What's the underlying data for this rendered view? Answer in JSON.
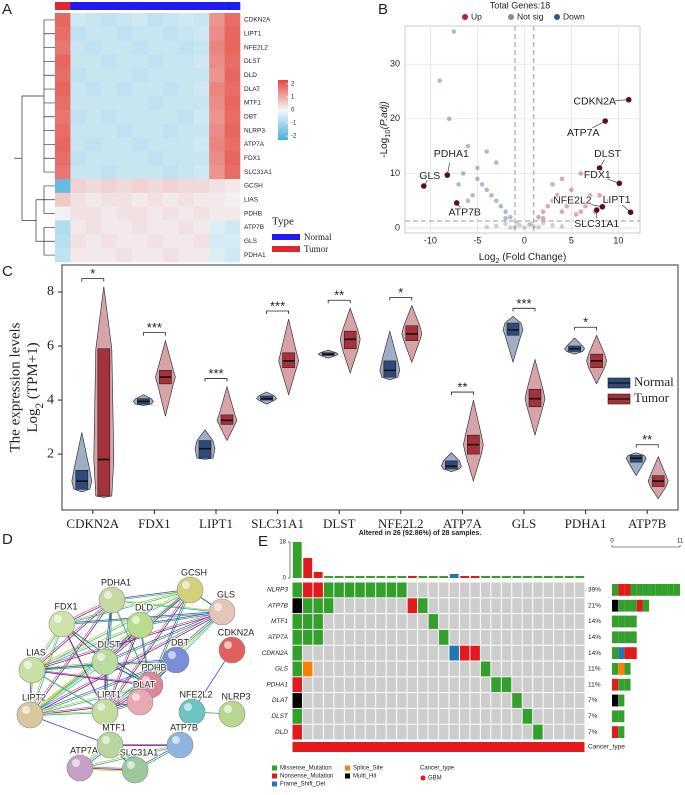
{
  "chart_data": [
    {
      "type": "heatmap",
      "panel": "A",
      "genes": [
        "CDKN2A",
        "LIPT1",
        "NFE2L2",
        "DLST",
        "DLD",
        "DLAT",
        "MTF1",
        "DBT",
        "NLRP3",
        "ATP7A",
        "FDX1",
        "SLC31A1",
        "GCSH",
        "LIAS",
        "PDHB",
        "ATP7B",
        "GLS",
        "PDHA1"
      ],
      "columns": [
        "Tumor",
        "Normal",
        "Normal",
        "Normal",
        "Normal",
        "Normal",
        "Normal",
        "Normal",
        "Normal",
        "Normal",
        "Normal",
        "Normal"
      ],
      "values": [
        [
          1.9,
          -0.5,
          -0.6,
          -0.7,
          -0.6,
          -0.5,
          -0.7,
          -0.6,
          -0.5,
          -0.6,
          1.3,
          1.8
        ],
        [
          1.8,
          -0.7,
          -0.6,
          -0.6,
          -0.7,
          -0.6,
          -0.6,
          -0.7,
          -0.6,
          -0.5,
          1.4,
          1.9
        ],
        [
          1.7,
          -0.6,
          -0.7,
          -0.6,
          -0.6,
          -0.7,
          -0.6,
          -0.6,
          -0.7,
          -0.6,
          1.5,
          1.9
        ],
        [
          1.9,
          -0.6,
          -0.6,
          -0.7,
          -0.6,
          -0.6,
          -0.7,
          -0.6,
          -0.6,
          -0.5,
          1.4,
          1.8
        ],
        [
          1.8,
          -0.7,
          -0.6,
          -0.6,
          -0.6,
          -0.7,
          -0.6,
          -0.6,
          -0.6,
          -0.6,
          1.3,
          1.9
        ],
        [
          1.9,
          -0.6,
          -0.7,
          -0.6,
          -0.7,
          -0.6,
          -0.6,
          -0.7,
          -0.6,
          -0.5,
          1.5,
          1.8
        ],
        [
          1.8,
          -0.6,
          -0.6,
          -0.6,
          -0.6,
          -0.6,
          -0.7,
          -0.6,
          -0.6,
          -0.6,
          1.4,
          1.9
        ],
        [
          1.7,
          -0.7,
          -0.6,
          -0.7,
          -0.6,
          -0.6,
          -0.6,
          -0.6,
          -0.7,
          -0.5,
          1.3,
          1.8
        ],
        [
          1.8,
          -0.6,
          -0.6,
          -0.6,
          -0.7,
          -0.6,
          -0.6,
          -0.7,
          -0.6,
          -0.6,
          1.4,
          1.9
        ],
        [
          1.9,
          -0.6,
          -0.7,
          -0.6,
          -0.6,
          -0.7,
          -0.6,
          -0.6,
          -0.6,
          -0.5,
          1.5,
          1.8
        ],
        [
          1.8,
          -0.7,
          -0.6,
          -0.6,
          -0.6,
          -0.6,
          -0.7,
          -0.6,
          -0.6,
          -0.6,
          1.4,
          1.9
        ],
        [
          1.7,
          -0.6,
          -0.6,
          -0.7,
          -0.6,
          -0.6,
          -0.6,
          -0.7,
          -0.6,
          -0.5,
          1.3,
          1.8
        ],
        [
          -1.9,
          0.5,
          0.4,
          0.5,
          0.4,
          0.5,
          0.4,
          0.5,
          0.4,
          0.4,
          0.3,
          0.2
        ],
        [
          0.6,
          0.3,
          0.2,
          0.3,
          0.3,
          0.2,
          0.3,
          0.2,
          0.3,
          0.2,
          0.2,
          0.1
        ],
        [
          0.1,
          0.3,
          0.3,
          0.2,
          0.3,
          0.3,
          0.2,
          0.3,
          0.2,
          0.3,
          0.2,
          0.2
        ],
        [
          -0.9,
          0.2,
          0.3,
          0.2,
          0.2,
          0.3,
          0.2,
          0.2,
          0.3,
          0.2,
          -0.3,
          -0.5
        ],
        [
          -0.8,
          0.3,
          0.2,
          0.3,
          0.2,
          0.2,
          0.3,
          0.2,
          0.2,
          0.3,
          -0.4,
          -0.4
        ],
        [
          -0.7,
          0.2,
          0.2,
          0.2,
          0.3,
          0.2,
          0.2,
          0.3,
          0.2,
          0.2,
          -0.3,
          -0.5
        ]
      ],
      "clim": [
        -2.3,
        2.3
      ],
      "colorbar_ticks": [
        2,
        1,
        0,
        -1,
        -2
      ],
      "colors": {
        "low": "#4aaed9",
        "mid": "#f4f8fb",
        "high": "#e4473d"
      },
      "legend_title": "Type",
      "legend": [
        {
          "name": "Normal",
          "color": "#1c1cf2"
        },
        {
          "name": "Tumor",
          "color": "#e0262c"
        }
      ]
    },
    {
      "type": "scatter",
      "panel": "B",
      "title": "Total Genes:18",
      "xlabel": {
        "base": "Log",
        "sub": "2",
        "rest": " (Fold Change)"
      },
      "ylabel": {
        "base": "-Log",
        "sub": "10",
        "rest": "(P.adj)"
      },
      "xlim": [
        -12.7,
        12.3
      ],
      "ylim": [
        -0.9,
        37
      ],
      "xticks": [
        -10,
        -5,
        0,
        5,
        10
      ],
      "yticks": [
        0,
        10,
        20,
        30
      ],
      "thresholds": {
        "x": [
          -1,
          1
        ],
        "y": 1.3
      },
      "series": [
        {
          "name": "Up",
          "color": "#b3213a",
          "x": [
            1.5,
            2,
            2.5,
            3,
            3.5,
            4,
            4.5,
            5,
            5.5,
            6,
            6.5,
            7,
            3,
            4,
            5,
            2,
            6,
            8,
            9,
            7.5
          ],
          "y": [
            2,
            3,
            4,
            5,
            6,
            3,
            4,
            5,
            2.5,
            3,
            4,
            6,
            8,
            9,
            7,
            1.8,
            10,
            6,
            5,
            3
          ]
        },
        {
          "name": "Not sig",
          "color": "#8c8c8c",
          "x": [
            -1,
            -0.5,
            0,
            0.5,
            1,
            -2,
            2,
            -3,
            3,
            -4,
            4,
            -0.8,
            0.7,
            -1.5,
            1.5
          ],
          "y": [
            0.2,
            0.5,
            0.1,
            0.6,
            0.3,
            0.8,
            0.9,
            0.4,
            0.5,
            0.2,
            0.3,
            1.0,
            0.8,
            0.1,
            0.2
          ]
        },
        {
          "name": "Down",
          "color": "#2f5597",
          "x": [
            -1.5,
            -2,
            -2.5,
            -3,
            -3.5,
            -4,
            -4.5,
            -5,
            -5.5,
            -6,
            -6.5,
            -7,
            -3,
            -4,
            -5,
            -2,
            -6,
            -8,
            -9,
            -7.5
          ],
          "y": [
            2,
            3,
            4,
            5,
            6,
            7,
            8,
            9,
            6,
            5,
            10,
            8,
            12,
            14,
            11,
            1.8,
            15,
            20,
            27,
            36
          ]
        }
      ],
      "labels": [
        {
          "text": "CDKN2A",
          "x": 11.1,
          "y": 23.5
        },
        {
          "text": "ATP7A",
          "x": 8.6,
          "y": 19.6
        },
        {
          "text": "DLST",
          "x": 8.0,
          "y": 11
        },
        {
          "text": "FDX1",
          "x": 10.1,
          "y": 8.2
        },
        {
          "text": "LIPT1",
          "x": 11.3,
          "y": 2.9
        },
        {
          "text": "SLC31A1",
          "x": 7.7,
          "y": 3.3
        },
        {
          "text": "NFE2L2",
          "x": 8.3,
          "y": 3.9
        },
        {
          "text": "PDHA1",
          "x": -8.2,
          "y": 9.7
        },
        {
          "text": "GLS",
          "x": -10.7,
          "y": 7.7
        },
        {
          "text": "ATP7B",
          "x": -7.2,
          "y": 4.6
        }
      ],
      "label_color": "#5a1020"
    },
    {
      "type": "violin",
      "panel": "C",
      "ylabel": [
        "The expression levels",
        {
          "base": "Log",
          "sub": "2",
          "rest": " (TPM+1)"
        }
      ],
      "categories": [
        "CDKN2A",
        "FDX1",
        "LIPT1",
        "SLC31A1",
        "DLST",
        "NFE2L2",
        "ATP7A",
        "GLS",
        "PDHA1",
        "ATP7B"
      ],
      "ylim": [
        -0.07,
        9.0
      ],
      "yticks": [
        2,
        4,
        6,
        8
      ],
      "series": [
        {
          "name": "Normal",
          "color": "#2d4a7a",
          "stats": [
            [
              0.6,
              0.7,
              1.0,
              1.4,
              2.8
            ],
            [
              3.8,
              3.85,
              3.95,
              4.05,
              4.2
            ],
            [
              1.8,
              1.85,
              2.2,
              2.5,
              2.9
            ],
            [
              3.85,
              4.0,
              4.05,
              4.15,
              4.3
            ],
            [
              5.55,
              5.65,
              5.7,
              5.75,
              5.85
            ],
            [
              4.75,
              4.85,
              5.1,
              5.45,
              6.55
            ],
            [
              1.35,
              1.45,
              1.55,
              1.75,
              2.05
            ],
            [
              5.4,
              6.4,
              6.6,
              6.85,
              7.1
            ],
            [
              5.7,
              5.8,
              5.9,
              6.0,
              6.3
            ],
            [
              1.2,
              1.7,
              1.85,
              1.95,
              2.05
            ]
          ]
        },
        {
          "name": "Tumor",
          "color": "#a3323d",
          "stats": [
            [
              0.4,
              0.45,
              1.8,
              5.9,
              8.2
            ],
            [
              3.4,
              4.6,
              4.85,
              5.1,
              6.2
            ],
            [
              2.5,
              3.1,
              3.25,
              3.45,
              4.5
            ],
            [
              4.2,
              5.2,
              5.45,
              5.75,
              7.0
            ],
            [
              5.0,
              5.9,
              6.25,
              6.55,
              7.4
            ],
            [
              5.4,
              6.2,
              6.45,
              6.75,
              7.5
            ],
            [
              1.0,
              2.0,
              2.35,
              2.7,
              4.0
            ],
            [
              2.7,
              3.75,
              4.05,
              4.4,
              5.5
            ],
            [
              4.6,
              5.2,
              5.45,
              5.7,
              6.4
            ],
            [
              0.35,
              0.8,
              1.0,
              1.2,
              1.9
            ]
          ]
        }
      ],
      "significance": [
        "*",
        "***",
        "***",
        "***",
        "**",
        "*",
        "**",
        "***",
        "*",
        "**"
      ]
    },
    {
      "type": "network",
      "panel": "D",
      "nodes": [
        "PDHA1",
        "GCSH",
        "FDX1",
        "DLD",
        "GLS",
        "DLST",
        "DBT",
        "LIAS",
        "PDHB",
        "CDKN2A",
        "DLAT",
        "LIPT1",
        "NFE2L2",
        "NLRP3",
        "LIPT2",
        "MTF1",
        "ATP7B",
        "ATP7A",
        "SLC31A1"
      ]
    },
    {
      "type": "oncoprint",
      "panel": "E",
      "header": "Altered in 26 (92.86%) of 28 samples.",
      "tmb": [
        18,
        10,
        3,
        1,
        1,
        1,
        1,
        1,
        1,
        1,
        1,
        1,
        1,
        1,
        1,
        2,
        1,
        1,
        1,
        1,
        1,
        1,
        1,
        1,
        1,
        1,
        1,
        1
      ],
      "top_ylim": [
        0,
        18
      ],
      "top_yticks": [
        0,
        18
      ],
      "right_xlim": [
        0,
        11
      ],
      "right_xticks": [
        0,
        11
      ],
      "genes": [
        {
          "name": "NLRP3",
          "percent": "39%",
          "mutations": [
            [
              0,
              "Missense_Mutation"
            ],
            [
              1,
              "Nonsense_Mutation"
            ],
            [
              2,
              "Nonsense_Mutation"
            ],
            [
              3,
              "Missense_Mutation"
            ],
            [
              4,
              "Missense_Mutation"
            ],
            [
              5,
              "Missense_Mutation"
            ],
            [
              6,
              "Missense_Mutation"
            ],
            [
              7,
              "Missense_Mutation"
            ],
            [
              8,
              "Missense_Mutation"
            ],
            [
              9,
              "Missense_Mutation"
            ],
            [
              10,
              "Missense_Mutation"
            ]
          ]
        },
        {
          "name": "ATP7B",
          "percent": "21%",
          "mutations": [
            [
              0,
              "Multi_Hit"
            ],
            [
              1,
              "Missense_Mutation"
            ],
            [
              2,
              "Missense_Mutation"
            ],
            [
              3,
              "Missense_Mutation"
            ],
            [
              11,
              "Nonsense_Mutation"
            ],
            [
              12,
              "Missense_Mutation"
            ]
          ]
        },
        {
          "name": "MTF1",
          "percent": "14%",
          "mutations": [
            [
              0,
              "Missense_Mutation"
            ],
            [
              1,
              "Missense_Mutation"
            ],
            [
              2,
              "Missense_Mutation"
            ],
            [
              13,
              "Missense_Mutation"
            ]
          ]
        },
        {
          "name": "ATP7A",
          "percent": "14%",
          "mutations": [
            [
              0,
              "Missense_Mutation"
            ],
            [
              1,
              "Missense_Mutation"
            ],
            [
              2,
              "Missense_Mutation"
            ],
            [
              14,
              "Missense_Mutation"
            ]
          ]
        },
        {
          "name": "CDKN2A",
          "percent": "14%",
          "mutations": [
            [
              0,
              "Missense_Mutation"
            ],
            [
              15,
              "Frame_Shift_Del"
            ],
            [
              16,
              "Nonsense_Mutation"
            ],
            [
              17,
              "Nonsense_Mutation"
            ]
          ]
        },
        {
          "name": "GLS",
          "percent": "11%",
          "mutations": [
            [
              0,
              "Missense_Mutation"
            ],
            [
              1,
              "Splice_Site"
            ],
            [
              18,
              "Missense_Mutation"
            ]
          ]
        },
        {
          "name": "PDHA1",
          "percent": "11%",
          "mutations": [
            [
              0,
              "Nonsense_Mutation"
            ],
            [
              19,
              "Missense_Mutation"
            ],
            [
              20,
              "Missense_Mutation"
            ]
          ]
        },
        {
          "name": "DLAT",
          "percent": "7%",
          "mutations": [
            [
              0,
              "Multi_Hit"
            ],
            [
              21,
              "Missense_Mutation"
            ]
          ]
        },
        {
          "name": "DLST",
          "percent": "7%",
          "mutations": [
            [
              0,
              "Missense_Mutation"
            ],
            [
              22,
              "Missense_Mutation"
            ]
          ]
        },
        {
          "name": "DLD",
          "percent": "7%",
          "mutations": [
            [
              0,
              "Nonsense_Mutation"
            ],
            [
              23,
              "Missense_Mutation"
            ]
          ]
        }
      ],
      "mutation_types": [
        {
          "name": "Missense_Mutation",
          "color": "#33a02c"
        },
        {
          "name": "Nonsense_Mutation",
          "color": "#e31a1c"
        },
        {
          "name": "Frame_Shift_Del",
          "color": "#1f78b4"
        },
        {
          "name": "Splice_Site",
          "color": "#ff7f00"
        },
        {
          "name": "Multi_Hit",
          "color": "#000000"
        }
      ],
      "annotation_label": "Cancer_type",
      "legend_title": "Cancer_type",
      "cancer_types": [
        {
          "name": "GBM",
          "color": "#e31a1c"
        }
      ]
    }
  ]
}
